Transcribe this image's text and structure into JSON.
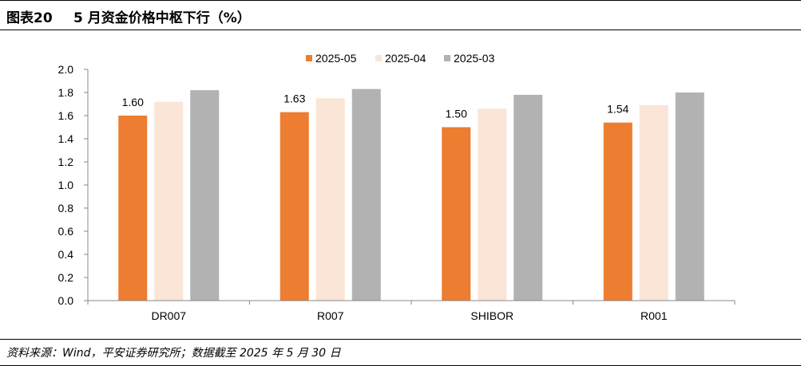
{
  "header": {
    "figure_no": "图表20",
    "title": "5 月资金价格中枢下行（%）"
  },
  "footer": {
    "source": "资料来源：Wind，平安证券研究所；数据截至 2025 年 5 月 30 日"
  },
  "chart_data": {
    "type": "bar",
    "categories": [
      "DR007",
      "R007",
      "SHIBOR",
      "R001"
    ],
    "series": [
      {
        "name": "2025-05",
        "values": [
          1.6,
          1.63,
          1.5,
          1.54
        ],
        "color": "#ED7D31",
        "show_labels": true
      },
      {
        "name": "2025-04",
        "values": [
          1.72,
          1.75,
          1.66,
          1.69
        ],
        "color": "#FBE5D6",
        "show_labels": false
      },
      {
        "name": "2025-03",
        "values": [
          1.82,
          1.83,
          1.78,
          1.8
        ],
        "color": "#B2B2B2",
        "show_labels": false
      }
    ],
    "ylim": [
      0,
      2.0
    ],
    "yticks": [
      "0.0",
      "0.2",
      "0.4",
      "0.6",
      "0.8",
      "1.0",
      "1.2",
      "1.4",
      "1.6",
      "1.8",
      "2.0"
    ],
    "grid": false,
    "legend_position": "top"
  }
}
